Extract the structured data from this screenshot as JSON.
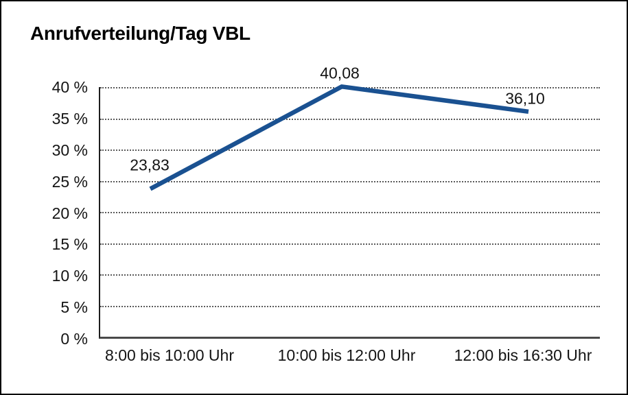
{
  "title": "Anrufverteilung/Tag VBL",
  "chart_data": {
    "type": "line",
    "title": "Anrufverteilung/Tag VBL",
    "categories": [
      "8:00 bis 10:00 Uhr",
      "10:00 bis 12:00 Uhr",
      "12:00 bis 16:30 Uhr"
    ],
    "values": [
      23.83,
      40.08,
      36.1
    ],
    "value_labels": [
      "23,83",
      "40,08",
      "36,10"
    ],
    "y_tick_labels_top_down": [
      "40 %",
      "35 %",
      "30 %",
      "25 %",
      "20 %",
      "15 %",
      "10 %",
      "5 %",
      "0 %"
    ],
    "ylim": [
      0,
      40
    ],
    "y_step": 5,
    "xlabel": "",
    "ylabel": "",
    "grid": "horizontal-dotted",
    "legend": "none",
    "line_color": "#1a5191",
    "text_color": "#141414",
    "background_color": "#ffffff",
    "border_color": "#000000"
  }
}
